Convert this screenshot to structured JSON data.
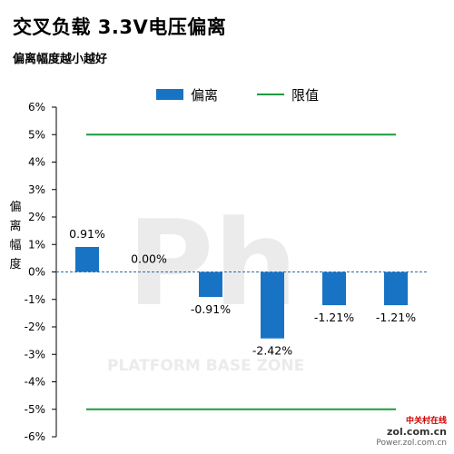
{
  "chart_data": {
    "type": "bar",
    "title": "交叉负载 3.3V电压偏离",
    "subtitle": "偏离幅度越小越好",
    "ylabel": "偏离幅度",
    "categories": [
      "",
      "",
      "",
      "",
      "",
      ""
    ],
    "series": [
      {
        "name": "偏离",
        "values": [
          0.91,
          0.0,
          -0.91,
          -2.42,
          -1.21,
          -1.21
        ],
        "color": "#1873c4"
      }
    ],
    "data_labels": [
      "0.91%",
      "0.00%",
      "-0.91%",
      "-2.42%",
      "-1.21%",
      "-1.21%"
    ],
    "limit_lines": {
      "name": "限值",
      "values": [
        5,
        -5
      ],
      "color": "#1a9b3f"
    },
    "ylim": [
      -6,
      6
    ],
    "yticks": [
      6,
      5,
      4,
      3,
      2,
      1,
      0,
      -1,
      -2,
      -3,
      -4,
      -5,
      -6
    ],
    "ytick_labels": [
      "6%",
      "5%",
      "4%",
      "3%",
      "2%",
      "1%",
      "0%",
      "-1%",
      "-2%",
      "-3%",
      "-4%",
      "-5%",
      "-6%"
    ],
    "legend_position": "top",
    "grid": false,
    "zero_line_style": "dashed"
  },
  "legend": {
    "bar_label": "偏离",
    "line_label": "限值"
  },
  "watermark": {
    "background_text": "PLATFORM BASE ZONE",
    "logo_text": "Ph",
    "site_cn": "中关村在线",
    "site_domain": "zol.com.cn",
    "site_sub": "Power.zol.com.cn"
  }
}
